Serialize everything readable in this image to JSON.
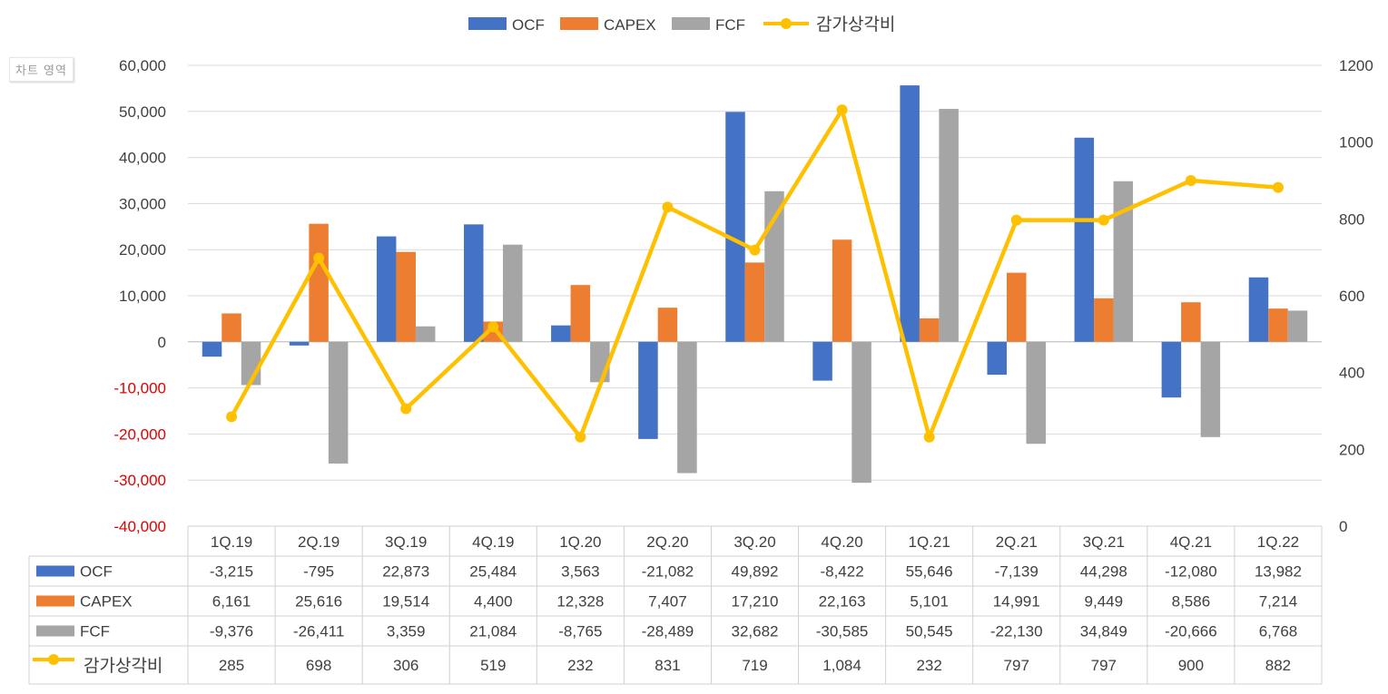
{
  "tooltip": "차트 영역",
  "chart_data": {
    "type": "bar",
    "categories": [
      "1Q.19",
      "2Q.19",
      "3Q.19",
      "4Q.19",
      "1Q.20",
      "2Q.20",
      "3Q.20",
      "4Q.20",
      "1Q.21",
      "2Q.21",
      "3Q.21",
      "4Q.21",
      "1Q.22"
    ],
    "series": [
      {
        "name": "OCF",
        "type": "bar",
        "axis": "left",
        "color": "#4472C4",
        "values": [
          -3215,
          -795,
          22873,
          25484,
          3563,
          -21082,
          49892,
          -8422,
          55646,
          -7139,
          44298,
          -12080,
          13982
        ],
        "labels": [
          "-3,215",
          "-795",
          "22,873",
          "25,484",
          "3,563",
          "-21,082",
          "49,892",
          "-8,422",
          "55,646",
          "-7,139",
          "44,298",
          "-12,080",
          "13,982"
        ]
      },
      {
        "name": "CAPEX",
        "type": "bar",
        "axis": "left",
        "color": "#ED7D31",
        "values": [
          6161,
          25616,
          19514,
          4400,
          12328,
          7407,
          17210,
          22163,
          5101,
          14991,
          9449,
          8586,
          7214
        ],
        "labels": [
          "6,161",
          "25,616",
          "19,514",
          "4,400",
          "12,328",
          "7,407",
          "17,210",
          "22,163",
          "5,101",
          "14,991",
          "9,449",
          "8,586",
          "7,214"
        ]
      },
      {
        "name": "FCF",
        "type": "bar",
        "axis": "left",
        "color": "#A5A5A5",
        "values": [
          -9376,
          -26411,
          3359,
          21084,
          -8765,
          -28489,
          32682,
          -30585,
          50545,
          -22130,
          34849,
          -20666,
          6768
        ],
        "labels": [
          "-9,376",
          "-26,411",
          "3,359",
          "21,084",
          "-8,765",
          "-28,489",
          "32,682",
          "-30,585",
          "50,545",
          "-22,130",
          "34,849",
          "-20,666",
          "6,768"
        ]
      },
      {
        "name": "감가상각비",
        "type": "line",
        "axis": "right",
        "color": "#FFC000",
        "values": [
          285,
          698,
          306,
          519,
          232,
          831,
          719,
          1084,
          232,
          797,
          797,
          900,
          882
        ],
        "labels": [
          "285",
          "698",
          "306",
          "519",
          "232",
          "831",
          "719",
          "1,084",
          "232",
          "797",
          "797",
          "900",
          "882"
        ]
      }
    ],
    "y_left": {
      "min": -40000,
      "max": 60000,
      "step": 10000,
      "ticks": [
        "60,000",
        "50,000",
        "40,000",
        "30,000",
        "20,000",
        "10,000",
        "0",
        "-10,000",
        "-20,000",
        "-30,000",
        "-40,000"
      ],
      "negative_color": "#E00000"
    },
    "y_right": {
      "min": 0,
      "max": 1200,
      "step": 200,
      "ticks": [
        "1200",
        "1000",
        "800",
        "600",
        "400",
        "200",
        "0"
      ]
    },
    "grid": true,
    "legend_position": "top",
    "data_table": true
  }
}
